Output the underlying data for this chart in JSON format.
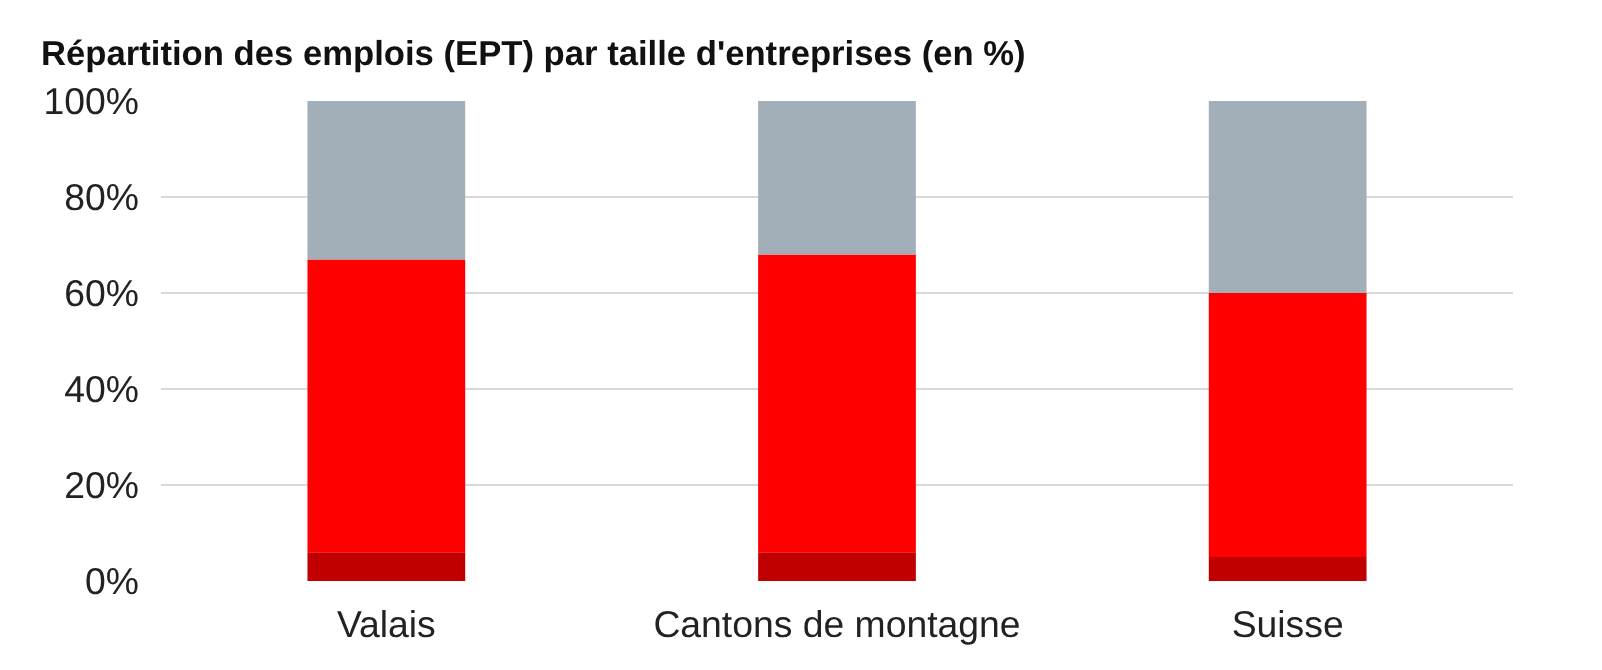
{
  "chart_data": {
    "type": "bar",
    "title": "Répartition des emplois (EPT) par taille d'entreprises (en %)",
    "categories": [
      "Valais",
      "Cantons de montagne",
      "Suisse"
    ],
    "stacked": true,
    "series": [
      {
        "color": "#c00000",
        "values": [
          6,
          6,
          5
        ]
      },
      {
        "color": "#ff0000",
        "values": [
          61,
          62,
          55
        ]
      },
      {
        "color": "#a2aeb8",
        "values": [
          33,
          32,
          40
        ]
      }
    ],
    "ylim": [
      0,
      100
    ],
    "yticks": [
      {
        "value": 0,
        "label": "0%"
      },
      {
        "value": 20,
        "label": "20%"
      },
      {
        "value": 40,
        "label": "40%"
      },
      {
        "value": 60,
        "label": "60%"
      },
      {
        "value": 80,
        "label": "80%"
      },
      {
        "value": 100,
        "label": "100%"
      }
    ],
    "grid": "y"
  }
}
